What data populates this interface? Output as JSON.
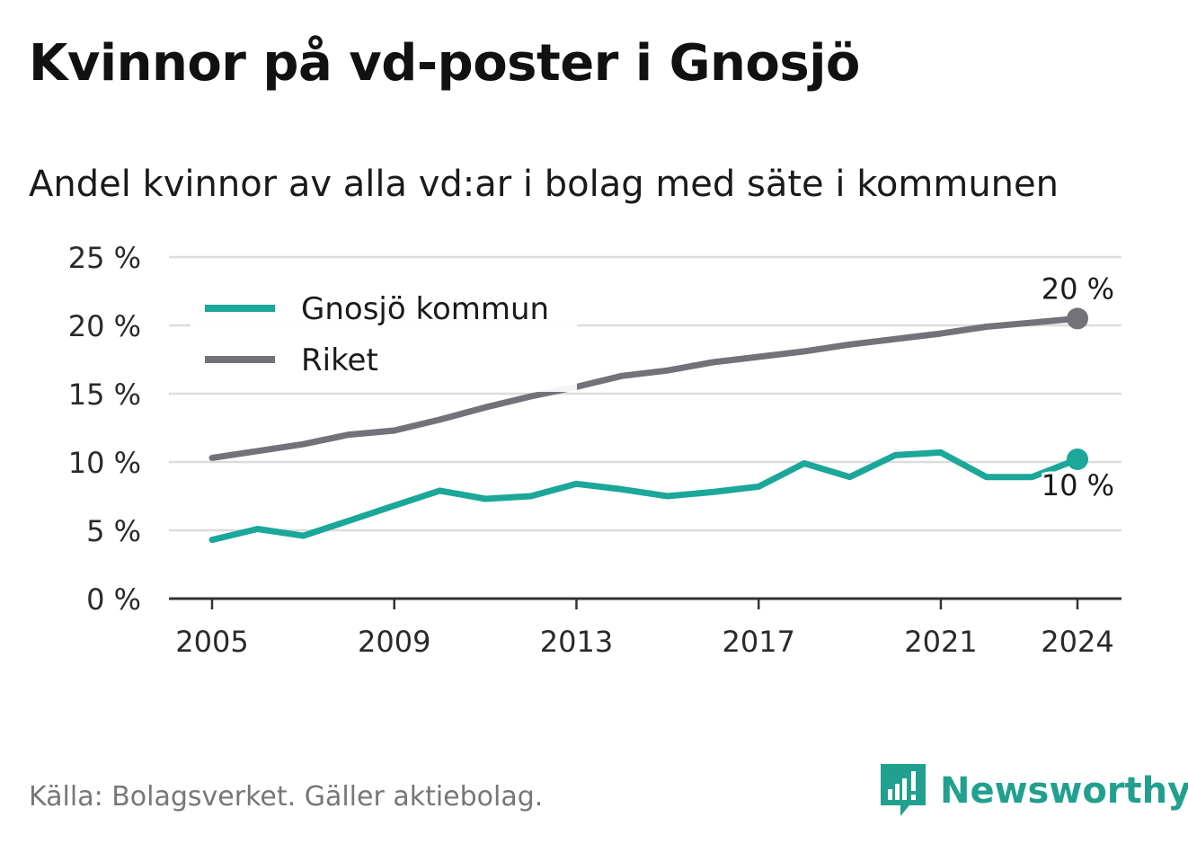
{
  "title": "Kvinnor på vd-poster i Gnosjö",
  "subtitle": "Andel kvinnor av alla vd:ar i bolag med säte i kommunen",
  "source": "Källa: Bolagsverket. Gäller aktiebolag.",
  "brand": {
    "name": "Newsworthy",
    "icon": "newsworthy-logo-icon"
  },
  "colors": {
    "gnosjo": "#1ba799",
    "riket": "#737278",
    "grid": "#dcdcdc",
    "axis": "#333333"
  },
  "chart_data": {
    "type": "line",
    "ylim": [
      0,
      25
    ],
    "yticks": [
      0,
      5,
      10,
      15,
      20,
      25
    ],
    "ytick_labels": [
      "0 %",
      "5 %",
      "10 %",
      "15 %",
      "20 %",
      "25 %"
    ],
    "xlim": [
      2005,
      2024
    ],
    "xticks": [
      2005,
      2009,
      2013,
      2017,
      2021,
      2024
    ],
    "xtick_labels": [
      "2005",
      "2009",
      "2013",
      "2017",
      "2021",
      "2024"
    ],
    "grid": true,
    "legend": "top-left",
    "x": [
      2005,
      2006,
      2007,
      2008,
      2009,
      2010,
      2011,
      2012,
      2013,
      2014,
      2015,
      2016,
      2017,
      2018,
      2019,
      2020,
      2021,
      2022,
      2023,
      2024
    ],
    "series": [
      {
        "name": "Gnosjö kommun",
        "color": "#1ba799",
        "values": [
          4.3,
          5.1,
          4.6,
          5.7,
          6.8,
          7.9,
          7.3,
          7.5,
          8.4,
          8.0,
          7.5,
          7.8,
          8.2,
          9.9,
          8.9,
          10.5,
          10.7,
          8.9,
          8.9,
          10.2
        ],
        "end_label": "10 %"
      },
      {
        "name": "Riket",
        "color": "#737278",
        "values": [
          10.3,
          10.8,
          11.3,
          12.0,
          12.3,
          13.1,
          14.0,
          14.8,
          15.5,
          16.3,
          16.7,
          17.3,
          17.7,
          18.1,
          18.6,
          19.0,
          19.4,
          19.9,
          20.2,
          20.5
        ],
        "end_label": "20 %"
      }
    ]
  }
}
